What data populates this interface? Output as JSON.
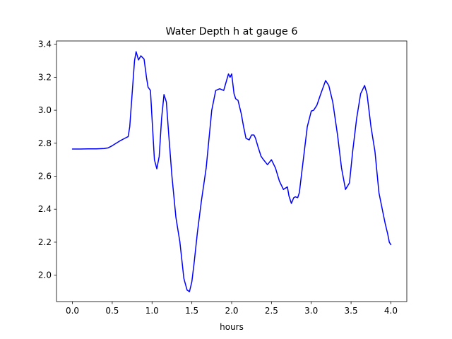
{
  "chart_data": {
    "type": "line",
    "title": "Water Depth h at gauge 6",
    "xlabel": "hours",
    "ylabel": "",
    "xlim": [
      -0.2,
      4.2
    ],
    "ylim": [
      1.84,
      3.42
    ],
    "xticks": [
      0.0,
      0.5,
      1.0,
      1.5,
      2.0,
      2.5,
      3.0,
      3.5,
      4.0
    ],
    "xtick_labels": [
      "0.0",
      "0.5",
      "1.0",
      "1.5",
      "2.0",
      "2.5",
      "3.0",
      "3.5",
      "4.0"
    ],
    "yticks": [
      2.0,
      2.2,
      2.4,
      2.6,
      2.8,
      3.0,
      3.2,
      3.4
    ],
    "ytick_labels": [
      "2.0",
      "2.2",
      "2.4",
      "2.6",
      "2.8",
      "3.0",
      "3.2",
      "3.4"
    ],
    "grid": false,
    "colors": {
      "line": "#0000ff"
    },
    "series": [
      {
        "x": [
          0.0,
          0.1,
          0.2,
          0.3,
          0.4,
          0.45,
          0.5,
          0.55,
          0.6,
          0.65,
          0.7,
          0.72,
          0.75,
          0.78,
          0.8,
          0.83,
          0.86,
          0.9,
          0.93,
          0.95,
          0.98,
          1.0,
          1.03,
          1.06,
          1.09,
          1.12,
          1.15,
          1.18,
          1.21,
          1.25,
          1.3,
          1.35,
          1.4,
          1.44,
          1.47,
          1.5,
          1.53,
          1.57,
          1.62,
          1.68,
          1.75,
          1.8,
          1.85,
          1.9,
          1.93,
          1.96,
          1.98,
          2.0,
          2.03,
          2.05,
          2.08,
          2.12,
          2.15,
          2.18,
          2.22,
          2.25,
          2.28,
          2.3,
          2.33,
          2.37,
          2.4,
          2.45,
          2.5,
          2.55,
          2.6,
          2.65,
          2.7,
          2.72,
          2.75,
          2.78,
          2.8,
          2.83,
          2.85,
          2.9,
          2.95,
          3.0,
          3.03,
          3.07,
          3.12,
          3.18,
          3.22,
          3.27,
          3.33,
          3.38,
          3.43,
          3.48,
          3.52,
          3.57,
          3.62,
          3.67,
          3.7,
          3.75,
          3.8,
          3.85,
          3.9,
          3.93,
          3.96,
          3.98,
          4.0
        ],
        "y": [
          2.765,
          2.765,
          2.766,
          2.766,
          2.768,
          2.772,
          2.785,
          2.8,
          2.815,
          2.828,
          2.84,
          2.9,
          3.1,
          3.3,
          3.355,
          3.305,
          3.33,
          3.31,
          3.2,
          3.14,
          3.12,
          2.95,
          2.7,
          2.645,
          2.72,
          2.95,
          3.095,
          3.05,
          2.85,
          2.6,
          2.35,
          2.2,
          1.98,
          1.91,
          1.9,
          1.96,
          2.08,
          2.26,
          2.45,
          2.65,
          3.0,
          3.12,
          3.13,
          3.12,
          3.17,
          3.22,
          3.2,
          3.22,
          3.1,
          3.07,
          3.06,
          2.98,
          2.9,
          2.83,
          2.82,
          2.85,
          2.85,
          2.83,
          2.78,
          2.72,
          2.7,
          2.67,
          2.7,
          2.65,
          2.57,
          2.52,
          2.535,
          2.48,
          2.435,
          2.47,
          2.475,
          2.47,
          2.5,
          2.7,
          2.9,
          2.995,
          3.0,
          3.03,
          3.1,
          3.18,
          3.15,
          3.05,
          2.85,
          2.65,
          2.52,
          2.56,
          2.75,
          2.95,
          3.1,
          3.15,
          3.1,
          2.9,
          2.75,
          2.5,
          2.38,
          2.31,
          2.25,
          2.2,
          2.185
        ]
      }
    ]
  }
}
